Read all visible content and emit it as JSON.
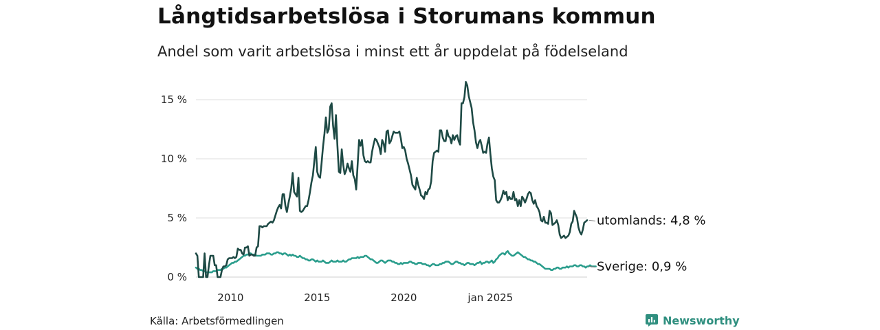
{
  "title": "Långtidsarbetslösa i Storumans kommun",
  "subtitle": "Andel som varit arbetslösa i minst ett år uppdelat på födelseland",
  "source": "Källa: Arbetsförmedlingen",
  "brand": "Newsworthy",
  "chart_data": {
    "type": "line",
    "x_start": "2008-01",
    "frequency": "monthly",
    "ylim": [
      0,
      17
    ],
    "y_ticks": [
      0,
      5,
      10,
      15
    ],
    "y_tick_labels": [
      "0 %",
      "5 %",
      "10 %",
      "15 %"
    ],
    "x_ticks": [
      {
        "label": "2010",
        "month": "2010-01"
      },
      {
        "label": "2015",
        "month": "2015-01"
      },
      {
        "label": "2020",
        "month": "2020-01"
      },
      {
        "label": "jan 2025",
        "month": "2025-01"
      }
    ],
    "grid": true,
    "series": [
      {
        "name": "utomlands",
        "end_label": "utomlands: 4,8 %",
        "color": "#1e4a45",
        "values": [
          2.0,
          1.8,
          0.0,
          0.0,
          0.0,
          0.0,
          2.0,
          0.0,
          0.0,
          1.0,
          1.8,
          1.8,
          1.8,
          1.0,
          1.0,
          0.0,
          0.0,
          0.0,
          0.6,
          0.9,
          0.9,
          1.0,
          1.5,
          1.6,
          1.6,
          1.6,
          1.7,
          1.6,
          1.7,
          2.4,
          2.3,
          2.3,
          2.0,
          1.9,
          2.5,
          2.5,
          2.6,
          1.8,
          1.9,
          1.9,
          1.8,
          1.8,
          2.5,
          2.6,
          4.3,
          4.3,
          4.2,
          4.3,
          4.3,
          4.3,
          4.5,
          4.6,
          4.7,
          4.6,
          4.8,
          5.2,
          5.6,
          5.9,
          6.1,
          5.8,
          7.0,
          7.0,
          6.0,
          5.5,
          6.2,
          6.8,
          7.5,
          8.8,
          7.2,
          7.0,
          6.8,
          8.4,
          5.6,
          5.5,
          5.6,
          5.8,
          6.0,
          6.0,
          6.5,
          7.2,
          8.0,
          8.6,
          9.8,
          11.0,
          8.9,
          8.5,
          8.4,
          9.6,
          11.0,
          12.1,
          13.5,
          12.2,
          12.5,
          14.4,
          14.7,
          12.8,
          11.7,
          13.7,
          11.1,
          8.9,
          8.8,
          10.8,
          9.5,
          8.7,
          9.0,
          9.6,
          9.2,
          8.9,
          9.8,
          8.6,
          8.3,
          7.4,
          9.5,
          11.6,
          11.1,
          11.6,
          10.3,
          9.8,
          9.7,
          9.8,
          9.7,
          9.7,
          10.6,
          11.2,
          11.7,
          11.6,
          11.3,
          11.0,
          10.4,
          11.6,
          11.3,
          10.6,
          12.3,
          12.4,
          11.3,
          11.5,
          11.9,
          12.3,
          12.2,
          12.2,
          12.2,
          12.3,
          11.7,
          10.9,
          11.0,
          10.7,
          10.0,
          9.6,
          9.1,
          8.6,
          7.8,
          7.6,
          7.4,
          8.4,
          7.8,
          7.4,
          6.9,
          6.8,
          6.6,
          7.2,
          7.0,
          7.4,
          7.5,
          8.1,
          9.8,
          10.5,
          10.6,
          10.7,
          10.6,
          12.4,
          12.4,
          11.8,
          11.5,
          11.5,
          12.4,
          11.9,
          11.8,
          11.3,
          12.0,
          11.6,
          11.9,
          12.0,
          11.5,
          11.2,
          14.7,
          14.7,
          15.2,
          16.5,
          16.2,
          15.3,
          14.8,
          14.3,
          13.1,
          12.4,
          11.4,
          10.9,
          11.4,
          11.6,
          11.1,
          10.5,
          10.6,
          10.5,
          11.3,
          11.8,
          10.4,
          9.2,
          8.5,
          8.2,
          6.5,
          6.3,
          6.3,
          6.5,
          6.8,
          7.3,
          7.0,
          7.2,
          6.5,
          6.8,
          6.6,
          6.6,
          7.2,
          6.5,
          6.6,
          6.0,
          6.5,
          6.0,
          6.8,
          6.6,
          6.3,
          6.6,
          7.0,
          7.2,
          7.1,
          6.5,
          6.2,
          6.5,
          6.0,
          5.8,
          5.5,
          4.8,
          4.7,
          5.1,
          4.6,
          4.6,
          4.5,
          5.6,
          5.4,
          4.4,
          4.5,
          4.6,
          4.8,
          4.4,
          3.6,
          3.3,
          3.4,
          3.5,
          3.3,
          3.4,
          3.5,
          3.8,
          4.5,
          4.7,
          5.6,
          5.3,
          5.0,
          4.2,
          3.8,
          3.6,
          4.0,
          4.6,
          4.7,
          4.8
        ]
      },
      {
        "name": "Sverige",
        "end_label": "Sverige: 0,9 %",
        "color": "#2a9d8c",
        "values": [
          0.8,
          0.7,
          0.7,
          0.6,
          0.6,
          0.5,
          0.5,
          0.4,
          0.4,
          0.4,
          0.4,
          0.4,
          0.5,
          0.5,
          0.5,
          0.6,
          0.6,
          0.6,
          0.7,
          0.7,
          0.8,
          0.8,
          0.9,
          1.0,
          1.1,
          1.2,
          1.2,
          1.3,
          1.3,
          1.4,
          1.5,
          1.6,
          1.7,
          1.8,
          1.8,
          1.9,
          1.9,
          2.0,
          2.0,
          1.9,
          1.9,
          1.9,
          1.8,
          1.8,
          1.8,
          1.8,
          1.9,
          1.9,
          1.9,
          2.0,
          2.0,
          2.0,
          1.9,
          1.9,
          2.0,
          2.0,
          2.1,
          2.1,
          2.0,
          2.0,
          1.9,
          2.0,
          2.0,
          1.9,
          1.8,
          1.9,
          1.8,
          1.9,
          1.8,
          1.8,
          1.7,
          1.7,
          1.8,
          1.7,
          1.6,
          1.6,
          1.5,
          1.5,
          1.4,
          1.4,
          1.5,
          1.5,
          1.4,
          1.3,
          1.4,
          1.3,
          1.3,
          1.3,
          1.4,
          1.3,
          1.2,
          1.2,
          1.2,
          1.3,
          1.4,
          1.3,
          1.3,
          1.3,
          1.4,
          1.3,
          1.3,
          1.3,
          1.4,
          1.3,
          1.3,
          1.4,
          1.5,
          1.5,
          1.6,
          1.6,
          1.6,
          1.6,
          1.7,
          1.6,
          1.7,
          1.7,
          1.7,
          1.8,
          1.8,
          1.7,
          1.6,
          1.5,
          1.5,
          1.4,
          1.3,
          1.2,
          1.2,
          1.3,
          1.4,
          1.4,
          1.3,
          1.2,
          1.3,
          1.4,
          1.4,
          1.4,
          1.3,
          1.3,
          1.2,
          1.2,
          1.1,
          1.1,
          1.2,
          1.1,
          1.2,
          1.2,
          1.2,
          1.2,
          1.3,
          1.3,
          1.2,
          1.2,
          1.1,
          1.1,
          1.2,
          1.2,
          1.2,
          1.1,
          1.1,
          1.1,
          1.0,
          1.0,
          0.9,
          1.0,
          1.1,
          1.1,
          1.0,
          1.0,
          1.0,
          1.1,
          1.1,
          1.2,
          1.2,
          1.3,
          1.3,
          1.3,
          1.2,
          1.1,
          1.1,
          1.2,
          1.3,
          1.3,
          1.2,
          1.2,
          1.1,
          1.1,
          1.0,
          1.1,
          1.2,
          1.2,
          1.1,
          1.1,
          1.1,
          1.0,
          1.1,
          1.2,
          1.2,
          1.3,
          1.1,
          1.2,
          1.2,
          1.3,
          1.3,
          1.2,
          1.3,
          1.4,
          1.2,
          1.3,
          1.5,
          1.6,
          1.8,
          1.9,
          2.0,
          2.0,
          1.9,
          2.1,
          2.2,
          2.0,
          1.9,
          1.8,
          1.8,
          1.9,
          2.0,
          2.1,
          2.0,
          1.9,
          1.8,
          1.7,
          1.7,
          1.6,
          1.5,
          1.5,
          1.4,
          1.4,
          1.3,
          1.3,
          1.2,
          1.1,
          1.1,
          1.0,
          0.9,
          0.8,
          0.7,
          0.7,
          0.7,
          0.7,
          0.6,
          0.6,
          0.7,
          0.7,
          0.8,
          0.8,
          0.7,
          0.7,
          0.8,
          0.8,
          0.8,
          0.9,
          0.8,
          0.9,
          0.9,
          0.9,
          1.0,
          1.0,
          0.9,
          0.9,
          1.0,
          1.0,
          0.9,
          0.9,
          0.8,
          0.9,
          0.9,
          1.0,
          0.9,
          0.9,
          0.9,
          0.9
        ]
      }
    ]
  }
}
